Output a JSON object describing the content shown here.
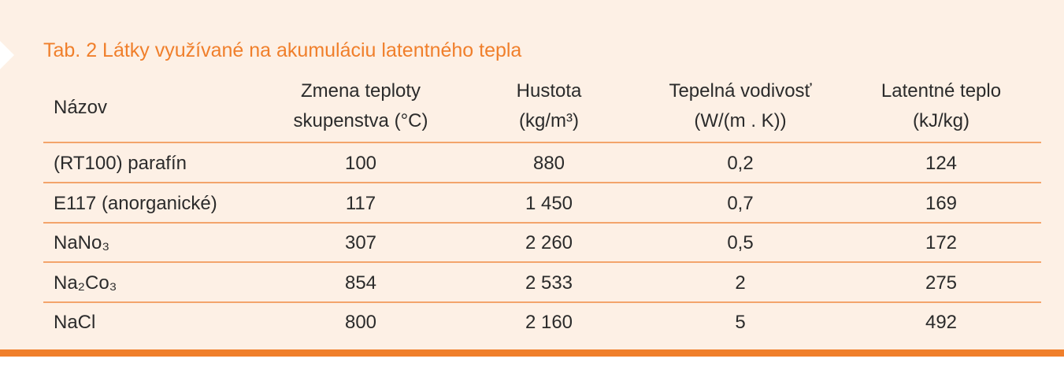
{
  "table": {
    "title": "Tab. 2 Látky využívané na akumuláciu latentného tepla",
    "headers": [
      [
        "Názov"
      ],
      [
        "Zmena teploty",
        "skupenstva (°C)"
      ],
      [
        "Hustota",
        "(kg/m³)"
      ],
      [
        "Tepelná vodivosť",
        "(W/(m . K))"
      ],
      [
        "Latentné teplo",
        "(kJ/kg)"
      ]
    ],
    "rows": [
      [
        "(RT100) parafín",
        "100",
        "880",
        "0,2",
        "124"
      ],
      [
        "E117 (anorganické)",
        "117",
        "1 450",
        "0,7",
        "169"
      ],
      [
        "NaNo₃",
        "307",
        "2 260",
        "0,5",
        "172"
      ],
      [
        "Na₂Co₃",
        "854",
        "2 533",
        "2",
        "275"
      ],
      [
        "NaCl",
        "800",
        "2 160",
        "5",
        "492"
      ]
    ]
  }
}
